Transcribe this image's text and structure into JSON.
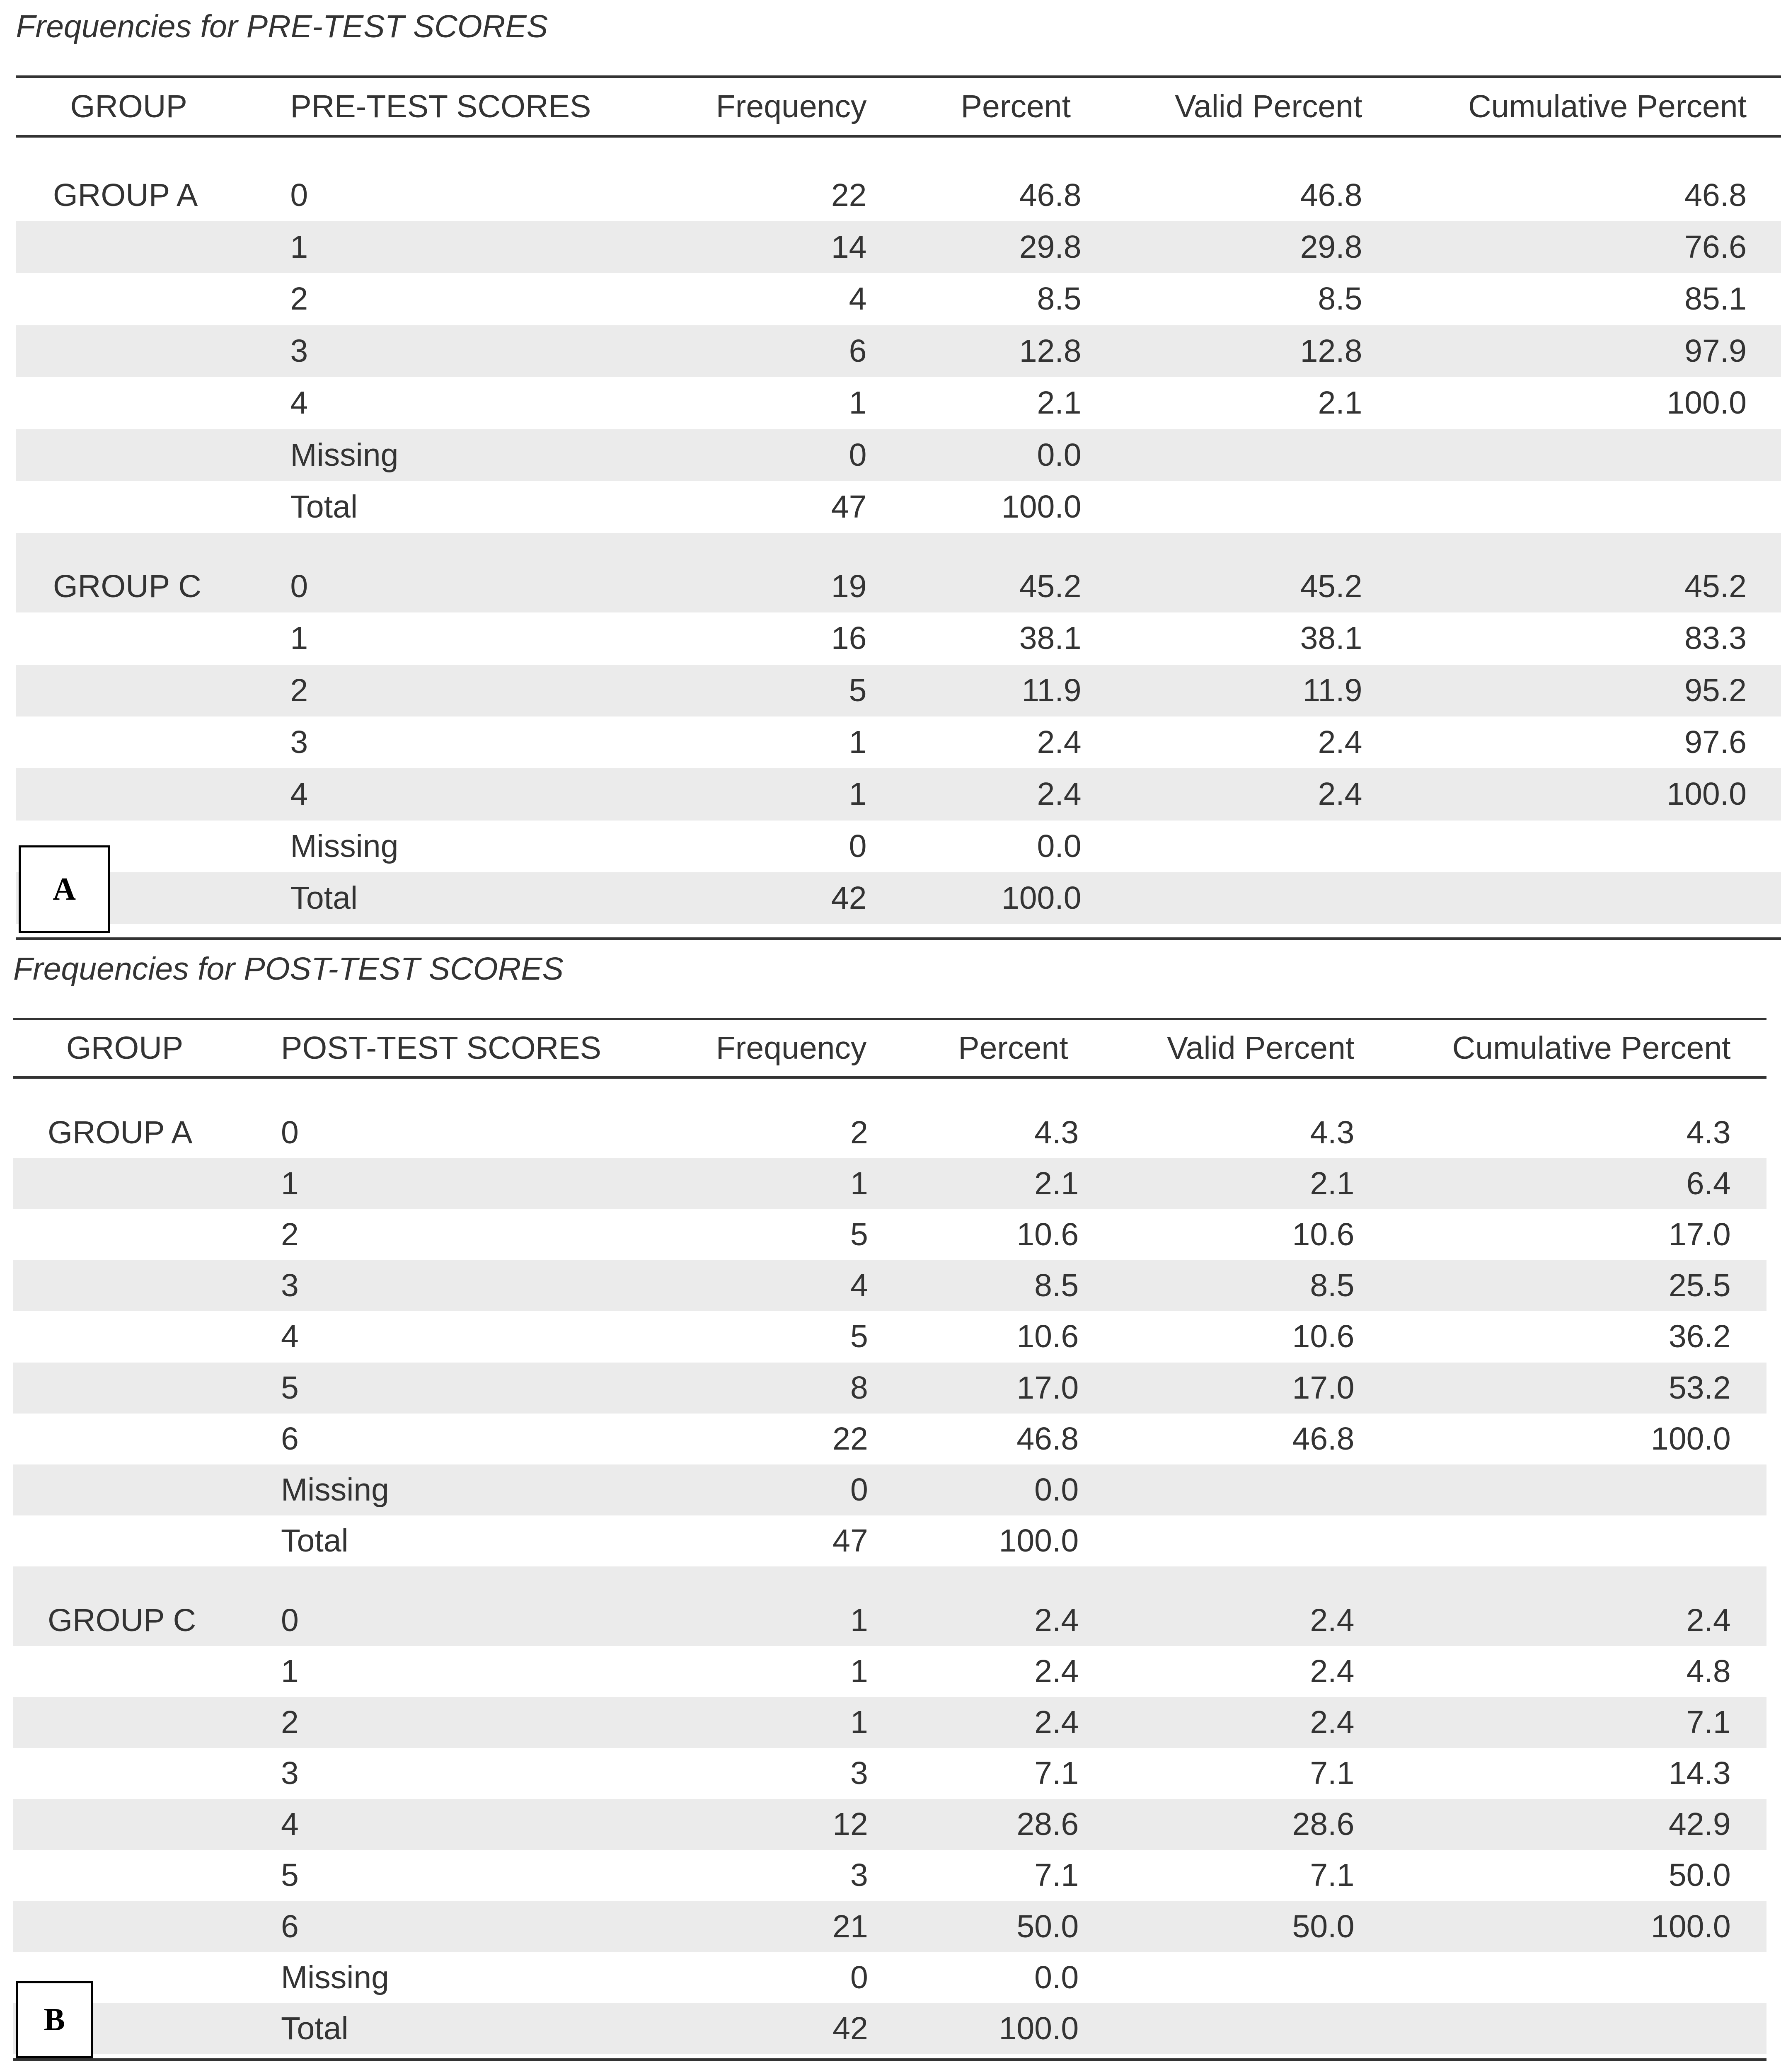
{
  "tables": [
    {
      "title": "Frequencies for PRE-TEST SCORES",
      "headers": [
        "GROUP",
        "PRE-TEST SCORES",
        "Frequency",
        "Percent",
        "Valid Percent",
        "Cumulative Percent"
      ],
      "panel_label": "A",
      "groups": [
        {
          "label": "GROUP A",
          "rows": [
            [
              "0",
              "22",
              "46.8",
              "46.8",
              "46.8"
            ],
            [
              "1",
              "14",
              "29.8",
              "29.8",
              "76.6"
            ],
            [
              "2",
              "4",
              "8.5",
              "8.5",
              "85.1"
            ],
            [
              "3",
              "6",
              "12.8",
              "12.8",
              "97.9"
            ],
            [
              "4",
              "1",
              "2.1",
              "2.1",
              "100.0"
            ],
            [
              "Missing",
              "0",
              "0.0",
              "",
              ""
            ],
            [
              "Total",
              "47",
              "100.0",
              "",
              ""
            ]
          ]
        },
        {
          "label": "GROUP C",
          "rows": [
            [
              "0",
              "19",
              "45.2",
              "45.2",
              "45.2"
            ],
            [
              "1",
              "16",
              "38.1",
              "38.1",
              "83.3"
            ],
            [
              "2",
              "5",
              "11.9",
              "11.9",
              "95.2"
            ],
            [
              "3",
              "1",
              "2.4",
              "2.4",
              "97.6"
            ],
            [
              "4",
              "1",
              "2.4",
              "2.4",
              "100.0"
            ],
            [
              "Missing",
              "0",
              "0.0",
              "",
              ""
            ],
            [
              "Total",
              "42",
              "100.0",
              "",
              ""
            ]
          ]
        }
      ]
    },
    {
      "title": "Frequencies for POST-TEST SCORES",
      "headers": [
        "GROUP",
        "POST-TEST SCORES",
        "Frequency",
        "Percent",
        "Valid Percent",
        "Cumulative Percent"
      ],
      "panel_label": "B",
      "groups": [
        {
          "label": "GROUP A",
          "rows": [
            [
              "0",
              "2",
              "4.3",
              "4.3",
              "4.3"
            ],
            [
              "1",
              "1",
              "2.1",
              "2.1",
              "6.4"
            ],
            [
              "2",
              "5",
              "10.6",
              "10.6",
              "17.0"
            ],
            [
              "3",
              "4",
              "8.5",
              "8.5",
              "25.5"
            ],
            [
              "4",
              "5",
              "10.6",
              "10.6",
              "36.2"
            ],
            [
              "5",
              "8",
              "17.0",
              "17.0",
              "53.2"
            ],
            [
              "6",
              "22",
              "46.8",
              "46.8",
              "100.0"
            ],
            [
              "Missing",
              "0",
              "0.0",
              "",
              ""
            ],
            [
              "Total",
              "47",
              "100.0",
              "",
              ""
            ]
          ]
        },
        {
          "label": "GROUP C",
          "rows": [
            [
              "0",
              "1",
              "2.4",
              "2.4",
              "2.4"
            ],
            [
              "1",
              "1",
              "2.4",
              "2.4",
              "4.8"
            ],
            [
              "2",
              "1",
              "2.4",
              "2.4",
              "7.1"
            ],
            [
              "3",
              "3",
              "7.1",
              "7.1",
              "14.3"
            ],
            [
              "4",
              "12",
              "28.6",
              "28.6",
              "42.9"
            ],
            [
              "5",
              "3",
              "7.1",
              "7.1",
              "50.0"
            ],
            [
              "6",
              "21",
              "50.0",
              "50.0",
              "100.0"
            ],
            [
              "Missing",
              "0",
              "0.0",
              "",
              ""
            ],
            [
              "Total",
              "42",
              "100.0",
              "",
              ""
            ]
          ]
        }
      ]
    }
  ],
  "colors": {
    "stripe": "#ebebeb",
    "text": "#333333",
    "rule": "#333333"
  }
}
